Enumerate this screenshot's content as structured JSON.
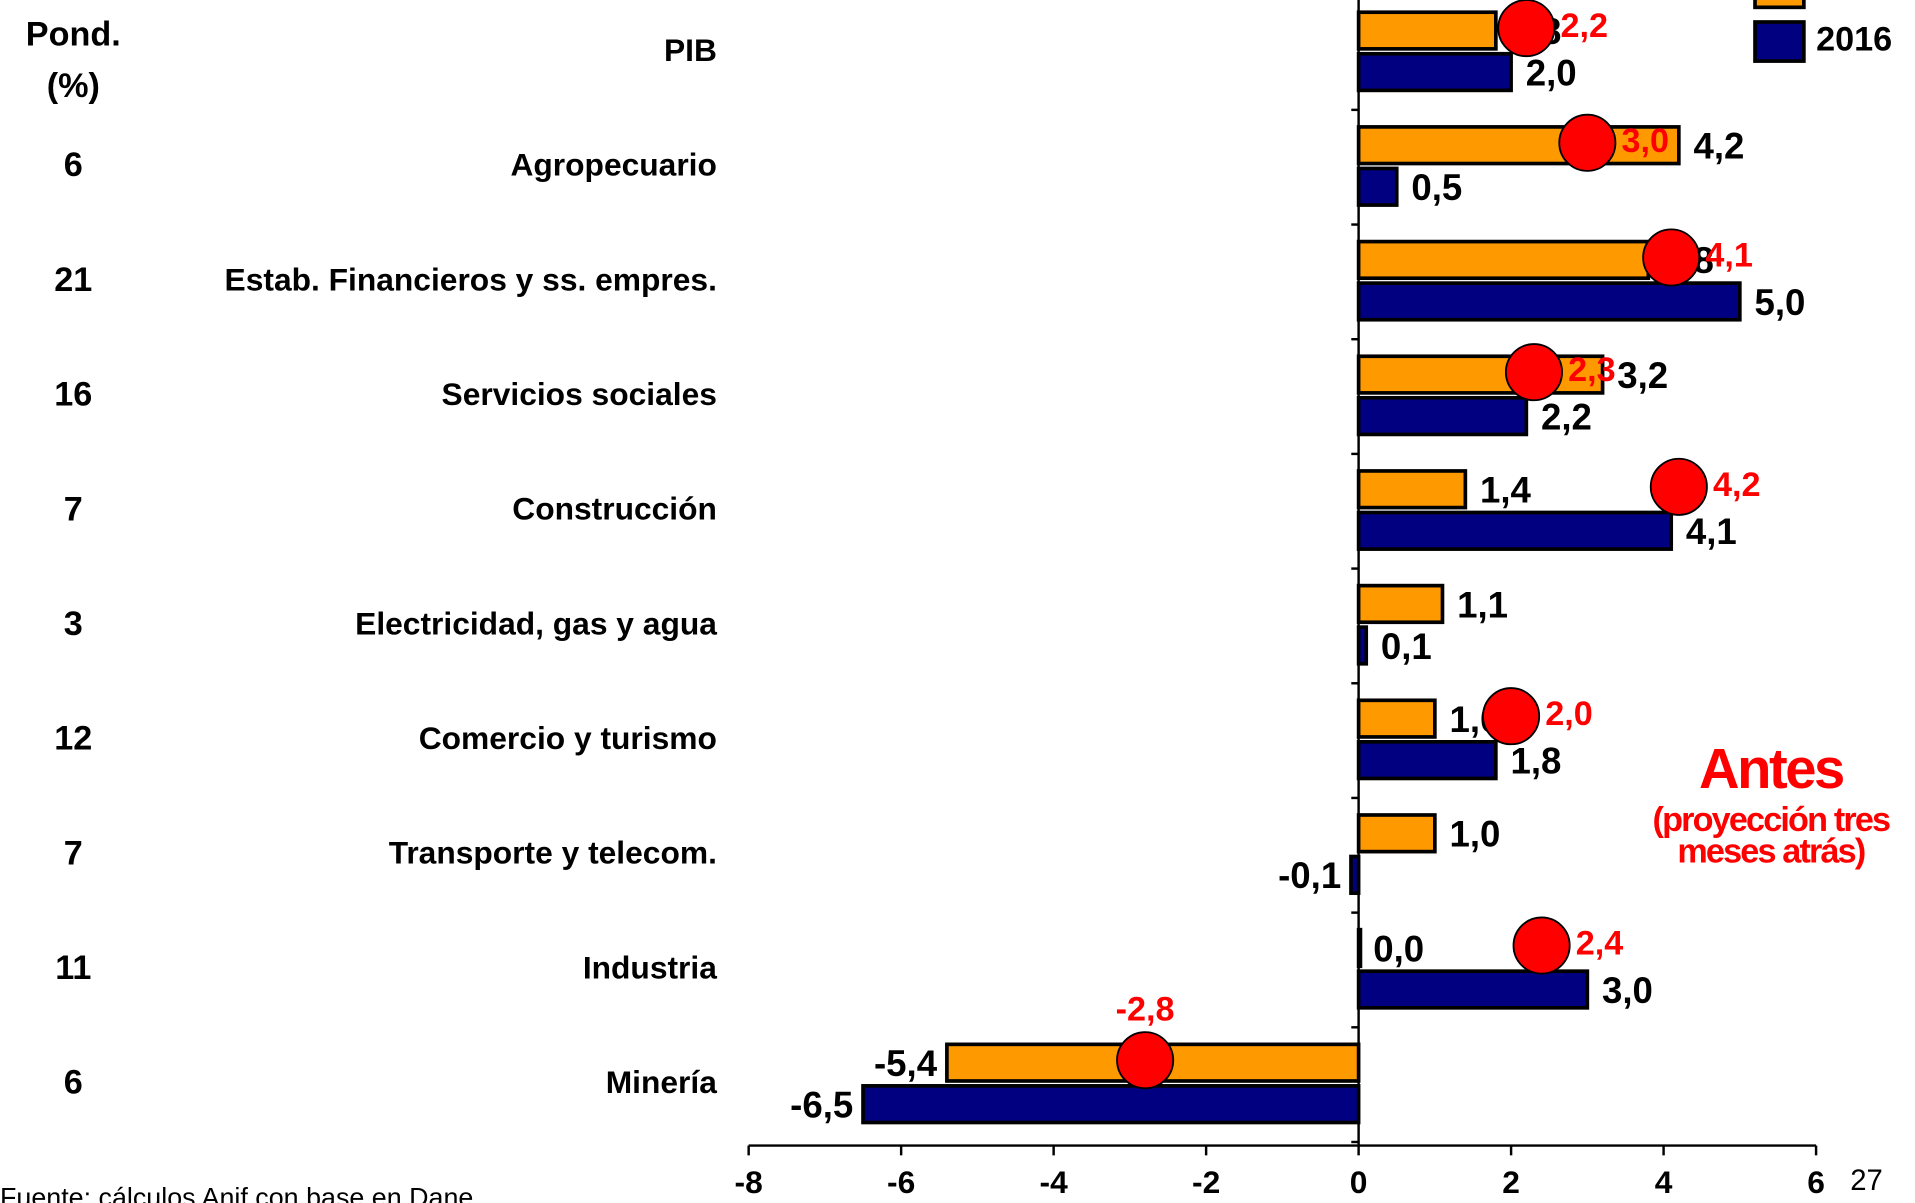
{
  "chart_data": {
    "type": "hbar",
    "pond_header": [
      "Pond.",
      "(%)"
    ],
    "categories": [
      "PIB",
      "Agropecuario",
      "Estab. Financieros y ss. empres.",
      "Servicios sociales",
      "Construcción",
      "Electricidad, gas y agua",
      "Comercio y turismo",
      "Transporte y telecom.",
      "Industria",
      "Minería"
    ],
    "pond": [
      null,
      6,
      21,
      16,
      7,
      3,
      12,
      7,
      11,
      6
    ],
    "series": [
      {
        "color": "#ff9900",
        "values": [
          1.8,
          4.2,
          3.8,
          3.2,
          1.4,
          1.1,
          1.0,
          1.0,
          0.0,
          -5.4
        ],
        "value_labels": [
          "1,8",
          "4,2",
          "3,8",
          "3,2",
          "1,4",
          "1,1",
          "1,0",
          "1,0",
          "0,0",
          "-5,4"
        ]
      },
      {
        "name": "2016",
        "color": "#000080",
        "values": [
          2.0,
          0.5,
          5.0,
          2.2,
          4.1,
          0.1,
          1.8,
          -0.1,
          3.0,
          -6.5
        ],
        "value_labels": [
          "2,0",
          "0,5",
          "5,0",
          "2,2",
          "4,1",
          "0,1",
          "1,8",
          "-0,1",
          "3,0",
          "-6,5"
        ]
      }
    ],
    "projection": {
      "color": "#ff0000",
      "values": [
        2.2,
        3.0,
        4.1,
        2.3,
        4.2,
        null,
        2.0,
        null,
        2.4,
        -2.8
      ],
      "value_labels": [
        "2,2",
        "3,0",
        "4,1",
        "2,3",
        "4,2",
        null,
        "2,0",
        null,
        "2,4",
        "-2,8"
      ]
    },
    "annotation": [
      "Antes",
      "(proyección tres",
      "meses atrás)"
    ],
    "xlim": [
      -8,
      6
    ],
    "xticks": [
      -8,
      -6,
      -4,
      -2,
      0,
      2,
      4,
      6
    ],
    "source": "Fuente: cálculos Anif con base en Dane",
    "page_number": "27"
  }
}
